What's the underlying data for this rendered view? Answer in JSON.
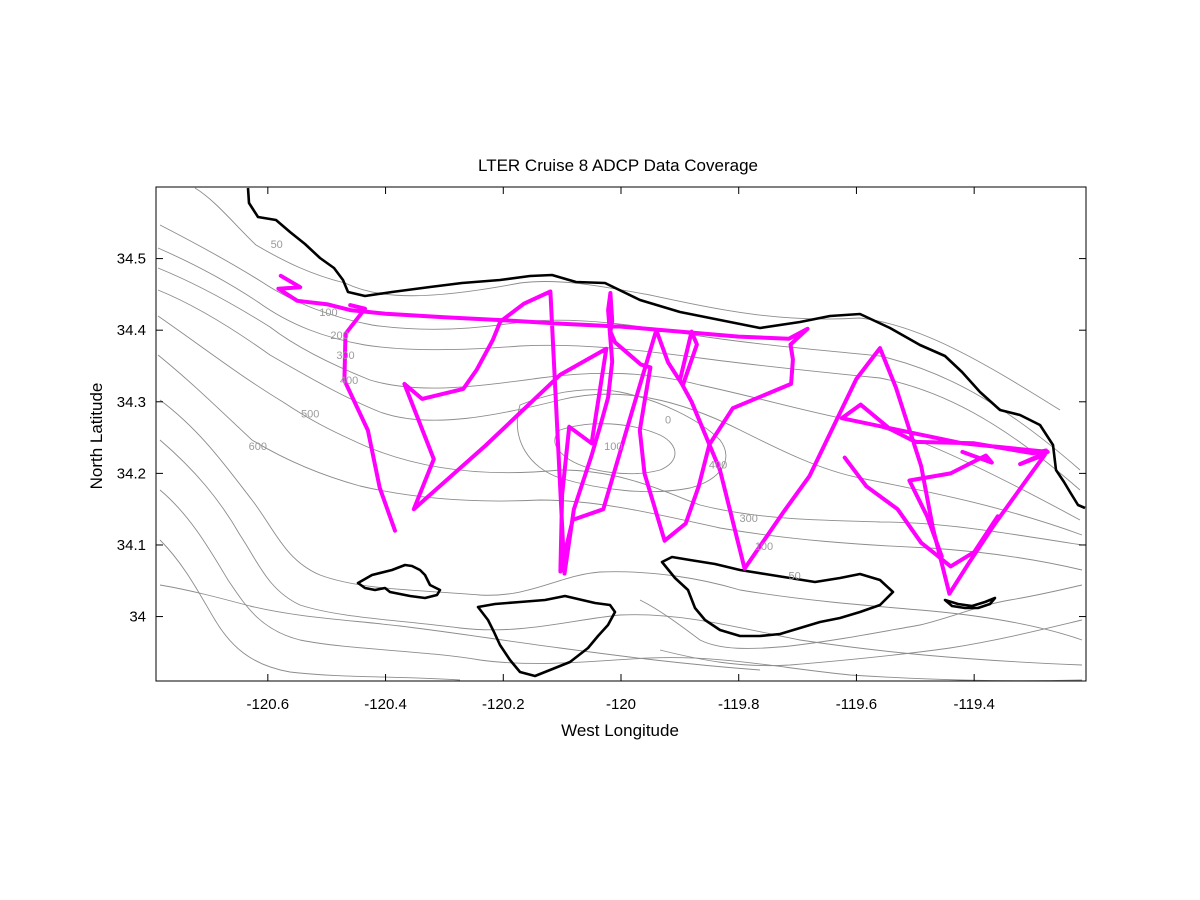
{
  "chart_data": {
    "type": "line",
    "title": "LTER Cruise 8 ADCP Data Coverage",
    "xlabel": "West Longitude",
    "ylabel": "North Latitude",
    "xlim": [
      -120.79,
      -119.21
    ],
    "ylim": [
      33.91,
      34.6
    ],
    "xticks": [
      -120.6,
      -120.4,
      -120.2,
      -120,
      -119.8,
      -119.6,
      -119.4
    ],
    "xtick_labels": [
      "-120.6",
      "-120.4",
      "-120.2",
      "-120",
      "-119.8",
      "-119.6",
      "-119.4"
    ],
    "yticks": [
      34.5,
      34.4,
      34.3,
      34.2,
      34.1,
      34
    ],
    "ytick_labels": [
      "34.5",
      "34.4",
      "34.3",
      "34.2",
      "34.1",
      "34"
    ],
    "grid": false,
    "track_color": "#ff00ff",
    "coast_color": "#000000",
    "contour_color": "#8c8c8c",
    "contour_labels": [
      {
        "text": "50",
        "lon": -120.585,
        "lat": 34.515
      },
      {
        "text": "100",
        "lon": -120.497,
        "lat": 34.42
      },
      {
        "text": "200",
        "lon": -120.478,
        "lat": 34.388
      },
      {
        "text": "300",
        "lon": -120.468,
        "lat": 34.36
      },
      {
        "text": "400",
        "lon": -120.462,
        "lat": 34.325
      },
      {
        "text": "500",
        "lon": -120.528,
        "lat": 34.278
      },
      {
        "text": "600",
        "lon": -120.617,
        "lat": 34.233
      },
      {
        "text": "100",
        "lon": -120.013,
        "lat": 34.233
      },
      {
        "text": "400",
        "lon": -119.835,
        "lat": 34.207
      },
      {
        "text": "300",
        "lon": -119.783,
        "lat": 34.132
      },
      {
        "text": "100",
        "lon": -119.757,
        "lat": 34.093
      },
      {
        "text": "50",
        "lon": -119.705,
        "lat": 34.052
      },
      {
        "text": "0",
        "lon": -119.92,
        "lat": 34.27
      }
    ],
    "series": [
      {
        "role": "ship-track",
        "points": [
          [
            -120.578,
            34.476
          ],
          [
            -120.545,
            34.46
          ],
          [
            -120.582,
            34.458
          ],
          [
            -120.55,
            34.441
          ],
          [
            -120.498,
            34.436
          ],
          [
            -120.46,
            34.428
          ],
          [
            -120.4,
            34.423
          ],
          [
            -120.3,
            34.418
          ],
          [
            -120.2,
            34.414
          ],
          [
            -120.1,
            34.409
          ],
          [
            -120.0,
            34.405
          ],
          [
            -119.9,
            34.398
          ],
          [
            -119.8,
            34.391
          ],
          [
            -119.715,
            34.388
          ],
          [
            -119.683,
            34.402
          ],
          [
            -119.712,
            34.38
          ],
          [
            -119.708,
            34.359
          ],
          [
            -119.711,
            34.325
          ],
          [
            -119.81,
            34.291
          ],
          [
            -119.85,
            34.24
          ],
          [
            -119.868,
            34.182
          ],
          [
            -119.89,
            34.13
          ],
          [
            -119.926,
            34.106
          ],
          [
            -119.96,
            34.2
          ],
          [
            -119.968,
            34.26
          ],
          [
            -119.96,
            34.3
          ],
          [
            -119.95,
            34.348
          ],
          [
            -119.966,
            34.352
          ],
          [
            -120.01,
            34.383
          ],
          [
            -120.018,
            34.398
          ],
          [
            -120.015,
            34.413
          ],
          [
            -120.018,
            34.452
          ],
          [
            -120.022,
            34.428
          ],
          [
            -120.015,
            34.356
          ],
          [
            -120.022,
            34.306
          ],
          [
            -120.035,
            34.267
          ],
          [
            -120.05,
            34.225
          ],
          [
            -120.08,
            34.15
          ],
          [
            -120.096,
            34.06
          ],
          [
            -120.12,
            34.454
          ],
          [
            -120.165,
            34.437
          ],
          [
            -120.205,
            34.412
          ],
          [
            -120.218,
            34.386
          ],
          [
            -120.245,
            34.345
          ],
          [
            -120.268,
            34.318
          ],
          [
            -120.338,
            34.304
          ],
          [
            -120.368,
            34.325
          ],
          [
            -120.318,
            34.22
          ],
          [
            -120.352,
            34.15
          ],
          [
            -120.23,
            34.239
          ],
          [
            -120.103,
            34.338
          ],
          [
            -120.025,
            34.374
          ],
          [
            -120.05,
            34.242
          ],
          [
            -120.088,
            34.265
          ],
          [
            -120.1,
            34.17
          ],
          [
            -120.103,
            34.063
          ],
          [
            -120.082,
            34.135
          ],
          [
            -120.03,
            34.15
          ],
          [
            -119.98,
            34.29
          ],
          [
            -119.94,
            34.4
          ],
          [
            -119.92,
            34.355
          ],
          [
            -119.895,
            34.323
          ],
          [
            -119.871,
            34.38
          ],
          [
            -119.88,
            34.398
          ],
          [
            -119.9,
            34.33
          ],
          [
            -119.88,
            34.3
          ],
          [
            -119.832,
            34.205
          ],
          [
            -119.79,
            34.067
          ],
          [
            -119.723,
            34.147
          ],
          [
            -119.68,
            34.196
          ],
          [
            -119.6,
            34.332
          ],
          [
            -119.56,
            34.375
          ],
          [
            -119.533,
            34.32
          ],
          [
            -119.49,
            34.21
          ],
          [
            -119.47,
            34.123
          ],
          [
            -119.442,
            34.032
          ],
          [
            -119.409,
            34.075
          ],
          [
            -119.367,
            34.127
          ],
          [
            -119.31,
            34.192
          ],
          [
            -119.28,
            34.226
          ],
          [
            -119.322,
            34.213
          ],
          [
            -119.275,
            34.23
          ],
          [
            -119.42,
            34.242
          ],
          [
            -119.625,
            34.277
          ],
          [
            -119.593,
            34.296
          ],
          [
            -119.543,
            34.262
          ],
          [
            -119.5,
            34.244
          ],
          [
            -119.4,
            34.242
          ],
          [
            -119.3,
            34.228
          ],
          [
            -119.278,
            34.232
          ]
        ]
      },
      {
        "role": "ship-track",
        "points": [
          [
            -120.384,
            34.12
          ],
          [
            -120.41,
            34.18
          ],
          [
            -120.43,
            34.26
          ],
          [
            -120.47,
            34.33
          ],
          [
            -120.468,
            34.395
          ],
          [
            -120.435,
            34.43
          ],
          [
            -120.46,
            34.435
          ]
        ]
      },
      {
        "role": "ship-track",
        "points": [
          [
            -119.455,
            34.084
          ],
          [
            -119.48,
            34.14
          ],
          [
            -119.51,
            34.19
          ],
          [
            -119.44,
            34.2
          ],
          [
            -119.38,
            34.225
          ],
          [
            -119.37,
            34.215
          ],
          [
            -119.42,
            34.23
          ]
        ]
      },
      {
        "role": "ship-track",
        "points": [
          [
            -119.62,
            34.222
          ],
          [
            -119.583,
            34.182
          ],
          [
            -119.53,
            34.15
          ],
          [
            -119.49,
            34.103
          ],
          [
            -119.47,
            34.09
          ],
          [
            -119.44,
            34.07
          ],
          [
            -119.4,
            34.09
          ],
          [
            -119.36,
            34.14
          ]
        ]
      }
    ]
  }
}
